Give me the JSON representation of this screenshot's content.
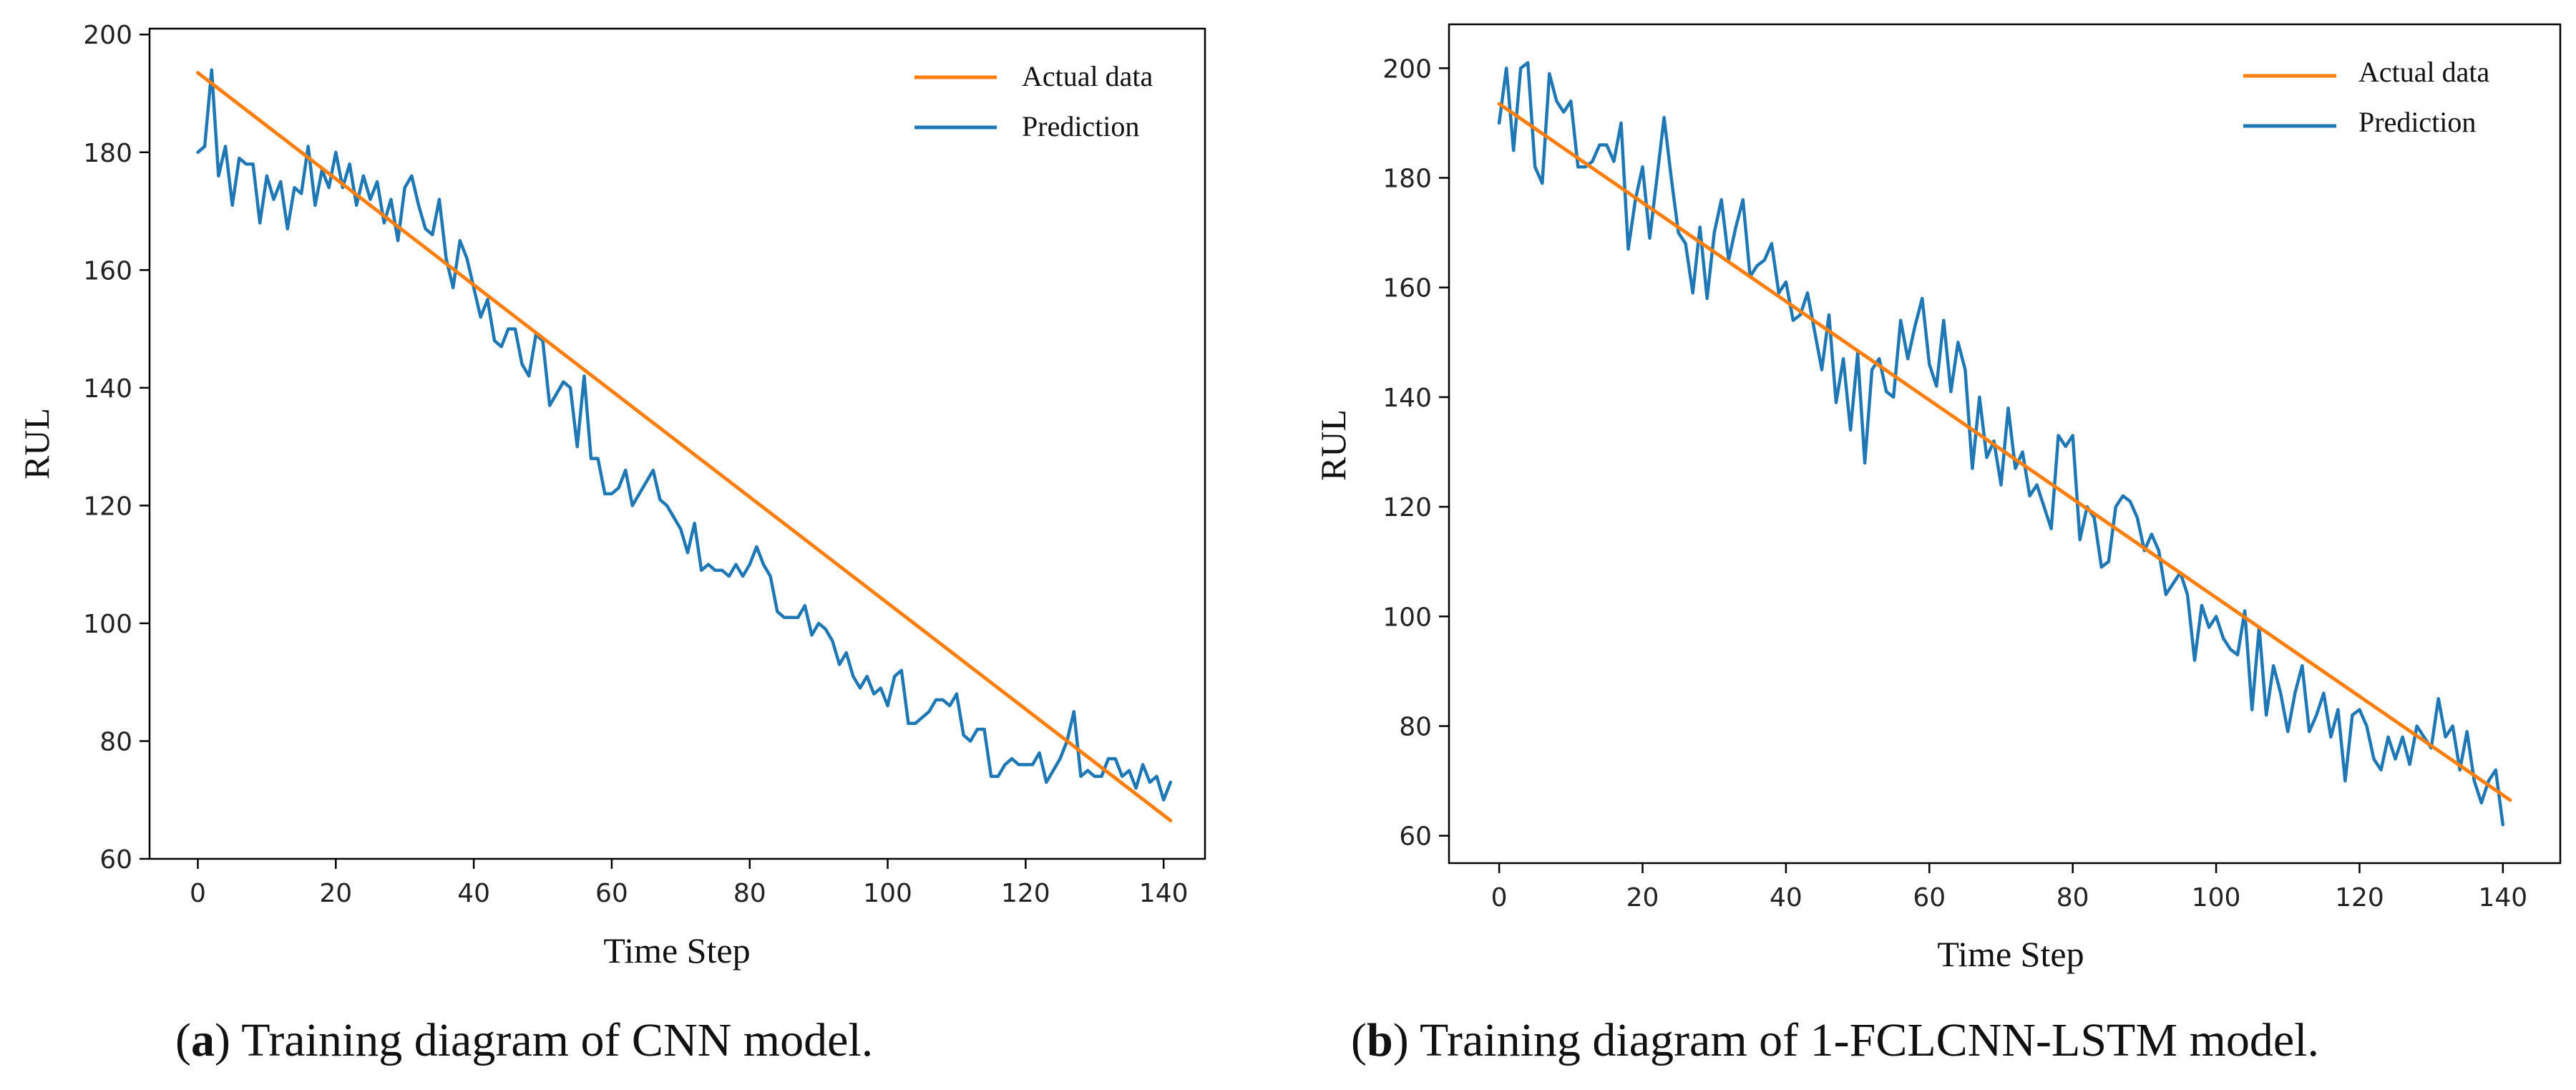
{
  "colors": {
    "actual": "#ff7f0e",
    "prediction": "#1f77b4",
    "axis": "#000000"
  },
  "chart_data": [
    {
      "type": "line",
      "caption_letter": "a",
      "caption_rest": ") Training diagram of CNN model.",
      "caption_open": "(",
      "xlabel": "Time Step",
      "ylabel": "RUL",
      "xlim": [
        -7,
        146
      ],
      "ylim": [
        60,
        201
      ],
      "xticks": [
        0,
        20,
        40,
        60,
        80,
        100,
        120,
        140
      ],
      "yticks": [
        60,
        80,
        100,
        120,
        140,
        160,
        180,
        200
      ],
      "grid": false,
      "legend_position": "top-right",
      "series": [
        {
          "name": "Actual data",
          "color_key": "actual",
          "x": [
            0,
            141
          ],
          "y": [
            193.5,
            66.5
          ]
        },
        {
          "name": "Prediction",
          "color_key": "prediction",
          "y": [
            180,
            181,
            194,
            176,
            181,
            171,
            179,
            178,
            178,
            168,
            176,
            172,
            175,
            167,
            174,
            173,
            181,
            171,
            177,
            174,
            180,
            174,
            178,
            171,
            176,
            172,
            175,
            168,
            172,
            165,
            174,
            176,
            171,
            167,
            166,
            172,
            162,
            157,
            165,
            162,
            157,
            152,
            155,
            148,
            147,
            150,
            150,
            144,
            142,
            149,
            148,
            137,
            139,
            141,
            140,
            130,
            142,
            128,
            128,
            122,
            122,
            123,
            126,
            120,
            122,
            124,
            126,
            121,
            120,
            118,
            116,
            112,
            117,
            109,
            110,
            109,
            109,
            108,
            110,
            108,
            110,
            113,
            110,
            108,
            102,
            101,
            101,
            101,
            103,
            98,
            100,
            99,
            97,
            93,
            95,
            91,
            89,
            91,
            88,
            89,
            86,
            91,
            92,
            83,
            83,
            84,
            85,
            87,
            87,
            86,
            88,
            81,
            80,
            82,
            82,
            74,
            74,
            76,
            77,
            76,
            76,
            76,
            78,
            73,
            75,
            77,
            80,
            85,
            74,
            75,
            74,
            74,
            77,
            77,
            74,
            75,
            72,
            76,
            73,
            74,
            70,
            73
          ]
        }
      ]
    },
    {
      "type": "line",
      "caption_letter": "b",
      "caption_rest": ") Training diagram of 1-FCLCNN-LSTM model.",
      "caption_open": "(",
      "xlabel": "Time Step",
      "ylabel": "RUL",
      "xlim": [
        -7,
        148
      ],
      "ylim": [
        55,
        208
      ],
      "xticks": [
        0,
        20,
        40,
        60,
        80,
        100,
        120,
        140
      ],
      "yticks": [
        60,
        80,
        100,
        120,
        140,
        160,
        180,
        200
      ],
      "grid": false,
      "legend_position": "top-right",
      "series": [
        {
          "name": "Actual data",
          "color_key": "actual",
          "x": [
            0,
            141
          ],
          "y": [
            193.5,
            66.5
          ]
        },
        {
          "name": "Prediction",
          "color_key": "prediction",
          "y": [
            190,
            200,
            185,
            200,
            201,
            182,
            179,
            199,
            194,
            192,
            194,
            182,
            182,
            183,
            186,
            186,
            183,
            190,
            167,
            176,
            182,
            169,
            180,
            191,
            180,
            170,
            168,
            159,
            171,
            158,
            170,
            176,
            165,
            171,
            176,
            162,
            164,
            165,
            168,
            159,
            161,
            154,
            155,
            159,
            152,
            145,
            155,
            139,
            147,
            134,
            148,
            128,
            145,
            147,
            141,
            140,
            154,
            147,
            153,
            158,
            146,
            142,
            154,
            141,
            150,
            145,
            127,
            140,
            129,
            132,
            124,
            138,
            127,
            130,
            122,
            124,
            120,
            116,
            133,
            131,
            133,
            114,
            120,
            118,
            109,
            110,
            120,
            122,
            121,
            118,
            112,
            115,
            112,
            104,
            106,
            108,
            104,
            92,
            102,
            98,
            100,
            96,
            94,
            93,
            101,
            83,
            98,
            82,
            91,
            86,
            79,
            86,
            91,
            79,
            82,
            86,
            78,
            83,
            70,
            82,
            83,
            80,
            74,
            72,
            78,
            74,
            78,
            73,
            80,
            78,
            76,
            85,
            78,
            80,
            72,
            79,
            70,
            66,
            70,
            72,
            62
          ]
        }
      ]
    }
  ]
}
